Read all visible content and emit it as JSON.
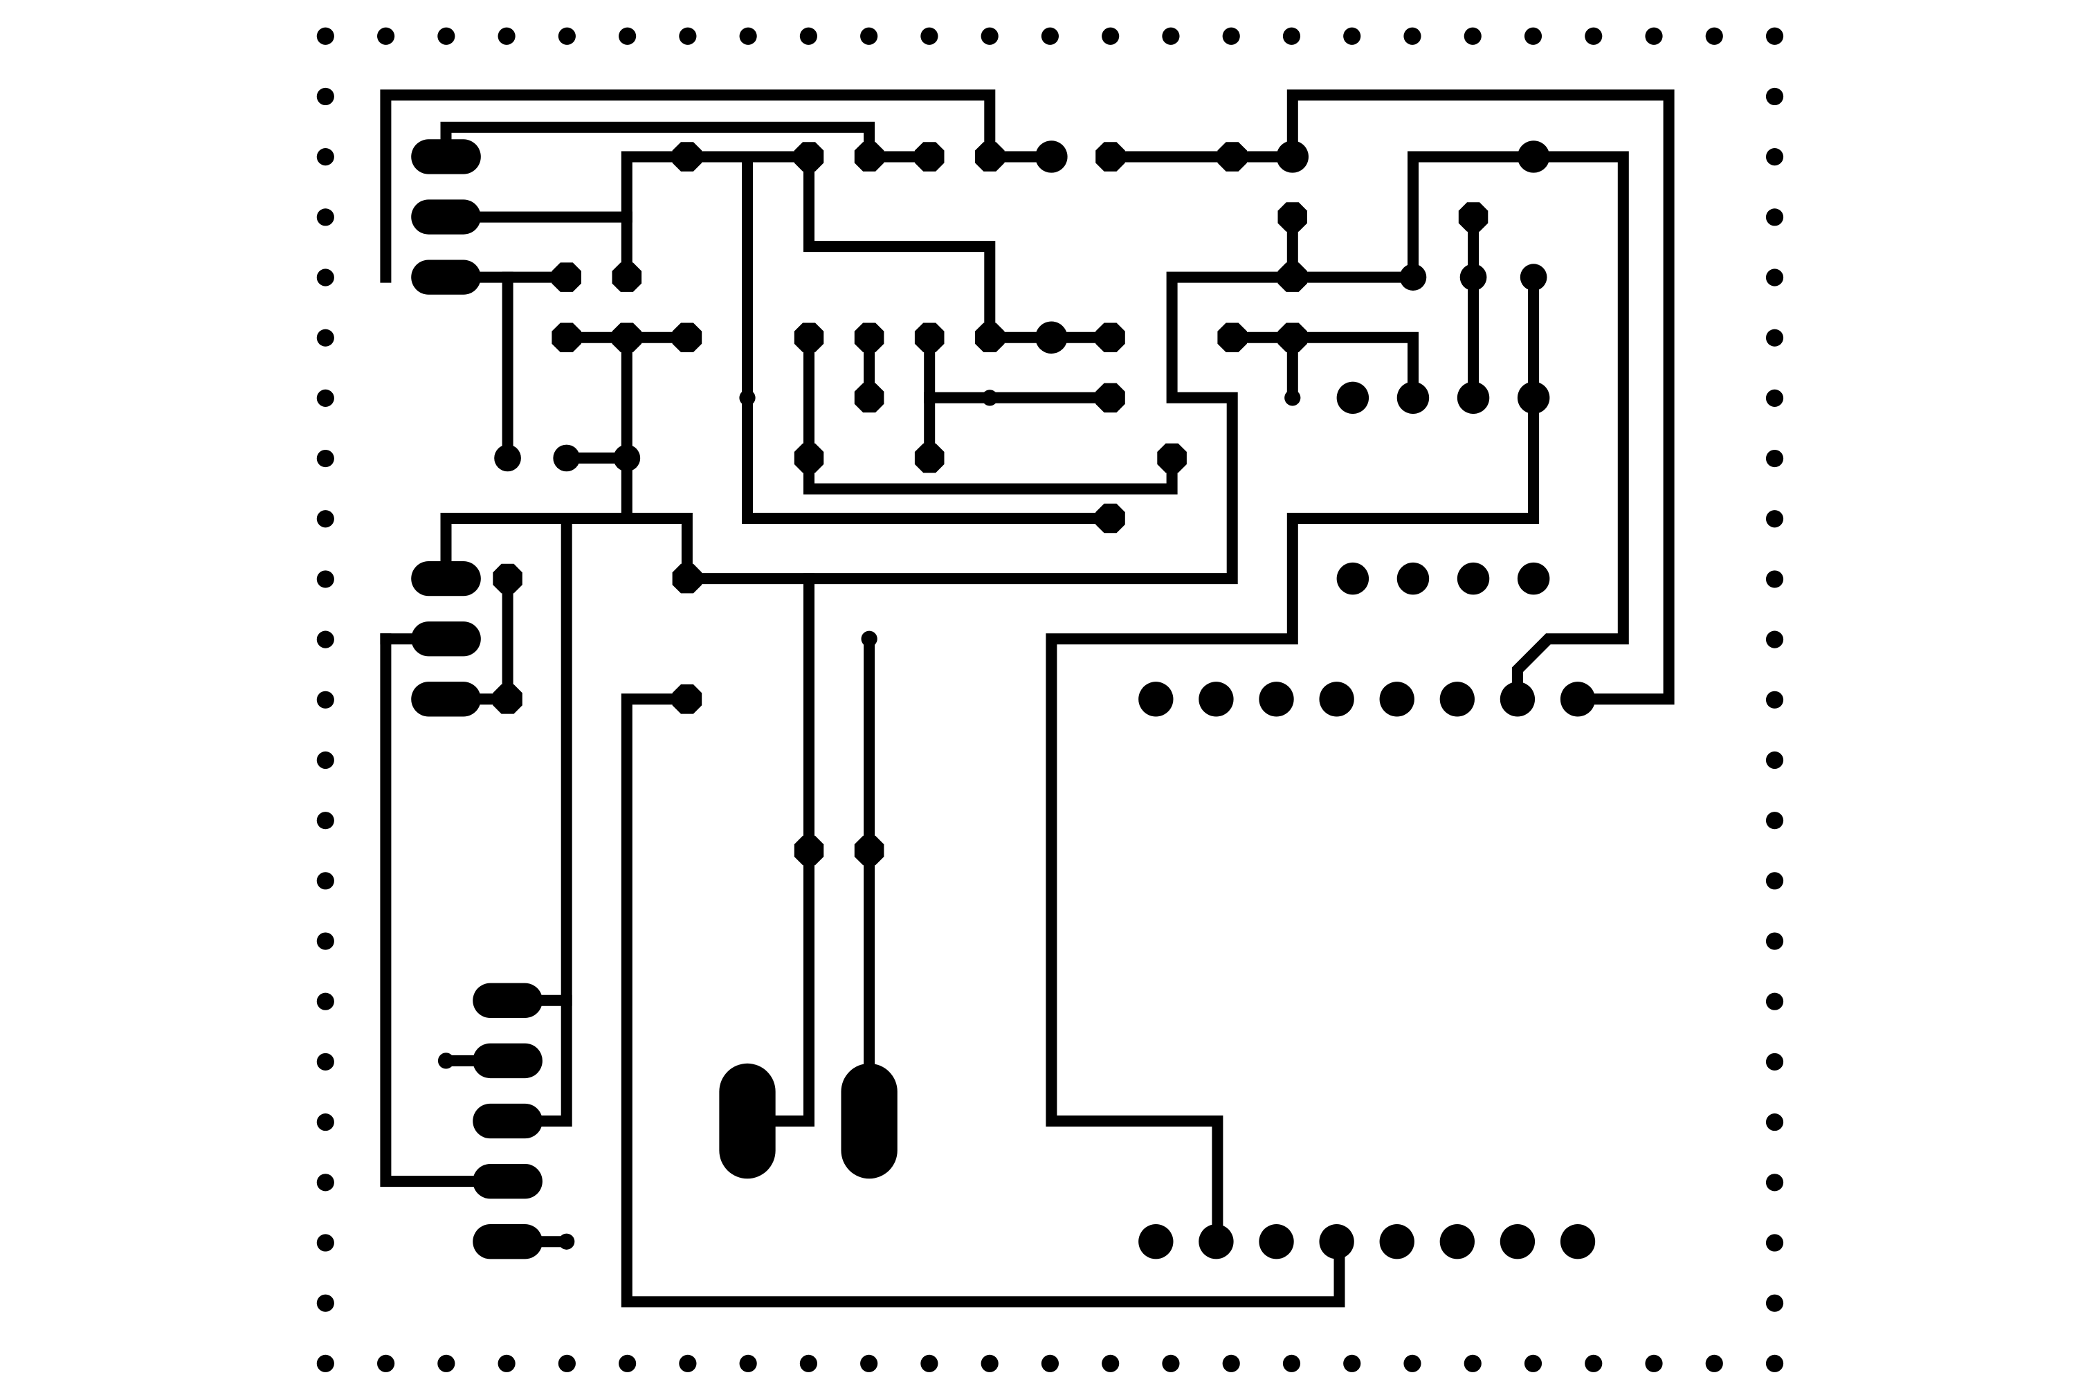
{
  "image": {
    "kind": "pcb-copper-layout",
    "background": "#ffffff",
    "ink": "#000000"
  }
}
